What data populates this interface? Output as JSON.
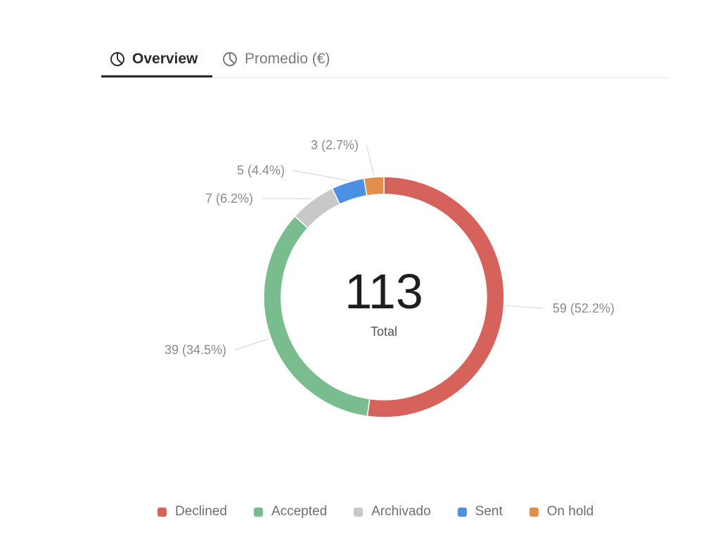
{
  "tabs": [
    {
      "label": "Overview",
      "icon": "pie-chart-icon",
      "active": true
    },
    {
      "label": "Promedio (€)",
      "icon": "pie-chart-icon",
      "active": false
    }
  ],
  "chart_data": {
    "type": "pie",
    "variant": "donut",
    "center_value": "113",
    "center_label": "Total",
    "series": [
      {
        "name": "Declined",
        "value": 59,
        "percent": 52.2,
        "label": "59 (52.2%)",
        "color": "#d5635b"
      },
      {
        "name": "Accepted",
        "value": 39,
        "percent": 34.5,
        "label": "39 (34.5%)",
        "color": "#79bd8f"
      },
      {
        "name": "Archivado",
        "value": 7,
        "percent": 6.2,
        "label": "7 (6.2%)",
        "color": "#c8c8c8"
      },
      {
        "name": "Sent",
        "value": 5,
        "percent": 4.4,
        "label": "5 (4.4%)",
        "color": "#4b90e2"
      },
      {
        "name": "On hold",
        "value": 3,
        "percent": 2.7,
        "label": "3 (2.7%)",
        "color": "#e08e4a"
      }
    ],
    "legend_position": "bottom"
  }
}
